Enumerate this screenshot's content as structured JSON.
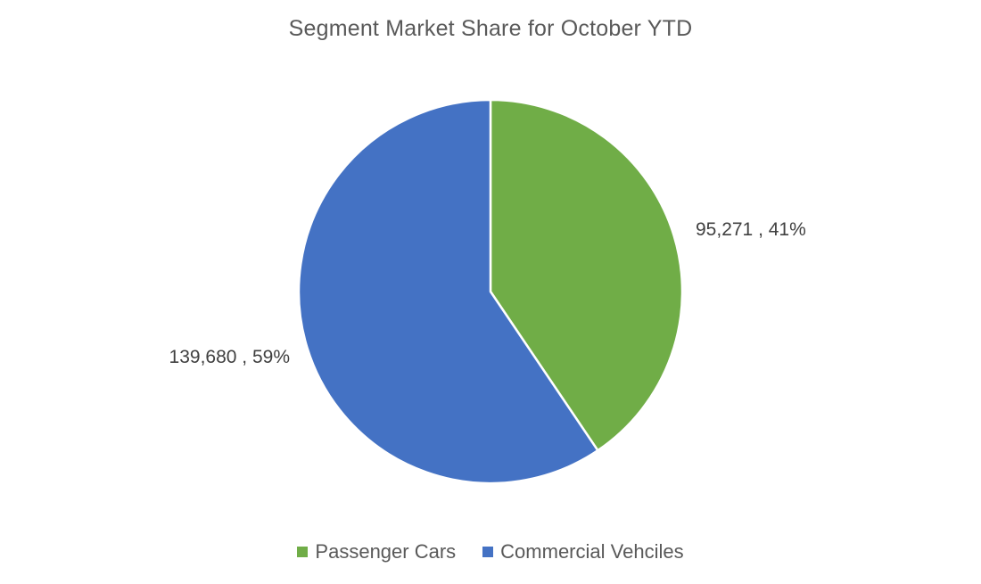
{
  "chart_data": {
    "type": "pie",
    "title": "Segment Market Share for October YTD",
    "categories": [
      "Passenger Cars",
      "Commercial Vehciles"
    ],
    "values": [
      95271,
      139680
    ],
    "percentages": [
      41,
      59
    ],
    "data_labels": [
      "95,271 , 41%",
      "139,680 , 59%"
    ],
    "colors": [
      "#70AD47",
      "#4472C4"
    ],
    "legend_position": "bottom",
    "start_angle": "top (12 o'clock), clockwise"
  }
}
